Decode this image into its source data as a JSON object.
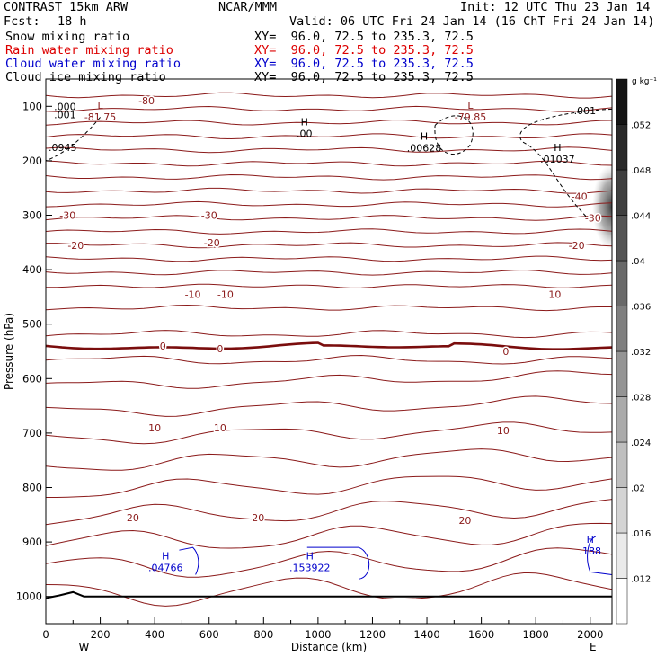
{
  "header": {
    "model": "CONTRAST 15km ARW",
    "org": "NCAR/MMM",
    "init": "Init: 12 UTC Thu 23 Jan 14",
    "fcst_label": "Fcst:",
    "fcst_value": "18 h",
    "valid": "Valid: 06 UTC Fri 24 Jan 14 (16 ChT Fri 24 Jan 14)",
    "layers": [
      {
        "name": "Snow mixing ratio",
        "xy": "XY=  96.0, 72.5 to 235.3, 72.5",
        "color": "#000000"
      },
      {
        "name": "Rain water mixing ratio",
        "xy": "XY=  96.0, 72.5 to 235.3, 72.5",
        "color": "#dd0000"
      },
      {
        "name": "Cloud water mixing ratio",
        "xy": "XY=  96.0, 72.5 to 235.3, 72.5",
        "color": "#0000cc"
      },
      {
        "name": "Cloud ice mixing ratio",
        "xy": "XY=  96.0, 72.5 to 235.3, 72.5",
        "color": "#000000"
      }
    ]
  },
  "chart_data": {
    "type": "cross-section",
    "xlabel": "Distance (km)",
    "ylabel": "Pressure (hPa)",
    "xlim": [
      0,
      2080
    ],
    "ylim": [
      1050,
      50
    ],
    "x_ticks": [
      0,
      200,
      400,
      600,
      800,
      1000,
      1200,
      1400,
      1600,
      1800,
      2000
    ],
    "y_ticks": [
      100,
      200,
      300,
      400,
      500,
      600,
      700,
      800,
      900,
      1000
    ],
    "direction_labels": {
      "left": "W",
      "right": "E"
    },
    "colorbar": {
      "unit": "g kg⁻¹",
      "ticks": [
        ".012",
        ".016",
        ".02",
        ".024",
        ".028",
        ".032",
        ".036",
        ".04",
        ".044",
        ".048",
        ".052"
      ],
      "range": [
        0.008,
        0.056
      ]
    },
    "temperature_labels": [
      {
        "text": "-80",
        "x": 370,
        "p": 90
      },
      {
        "text": "-30",
        "x": 80,
        "p": 300
      },
      {
        "text": "-30",
        "x": 600,
        "p": 300
      },
      {
        "text": "-20",
        "x": 110,
        "p": 355
      },
      {
        "text": "-20",
        "x": 610,
        "p": 350
      },
      {
        "text": "-10",
        "x": 540,
        "p": 445
      },
      {
        "text": "-10",
        "x": 660,
        "p": 445
      },
      {
        "text": "10",
        "x": 1870,
        "p": 445
      },
      {
        "text": "0",
        "x": 430,
        "p": 540
      },
      {
        "text": "0",
        "x": 640,
        "p": 545
      },
      {
        "text": "0",
        "x": 1690,
        "p": 550
      },
      {
        "text": "10",
        "x": 400,
        "p": 690
      },
      {
        "text": "10",
        "x": 640,
        "p": 690
      },
      {
        "text": "10",
        "x": 1680,
        "p": 695
      },
      {
        "text": "20",
        "x": 320,
        "p": 855
      },
      {
        "text": "20",
        "x": 780,
        "p": 855
      },
      {
        "text": "20",
        "x": 1540,
        "p": 860
      },
      {
        "text": "-40",
        "x": 1960,
        "p": 265
      },
      {
        "text": "-30",
        "x": 2010,
        "p": 305
      },
      {
        "text": "-20",
        "x": 1950,
        "p": 355
      }
    ],
    "extrema": [
      {
        "type": "L",
        "value": "-81.75",
        "x": 200,
        "p": 108,
        "color": "#8b1a1a"
      },
      {
        "type": "L",
        "value": "-79.85",
        "x": 1560,
        "p": 108,
        "color": "#8b1a1a"
      },
      {
        "type": "H",
        "value": ".00",
        "x": 950,
        "p": 138,
        "color": "#000000"
      },
      {
        "type": "H",
        "value": ".00628",
        "x": 1390,
        "p": 165,
        "color": "#000000"
      },
      {
        "type": "H",
        "value": ".01037",
        "x": 1880,
        "p": 185,
        "color": "#000000"
      },
      {
        "type": "H",
        "value": ".04766",
        "x": 440,
        "p": 935,
        "color": "#0000cc"
      },
      {
        "type": "H",
        "value": ".153922",
        "x": 970,
        "p": 935,
        "color": "#0000cc"
      },
      {
        "type": "H",
        "value": ".188",
        "x": 2000,
        "p": 905,
        "color": "#0000cc"
      }
    ],
    "contour_values": [
      {
        "text": ".001",
        "x": 30,
        "p": 115
      },
      {
        "text": ".000",
        "x": 30,
        "p": 100
      },
      {
        "text": ".001",
        "x": 1940,
        "p": 108
      },
      {
        "text": ".0945",
        "x": 10,
        "p": 175
      }
    ]
  }
}
